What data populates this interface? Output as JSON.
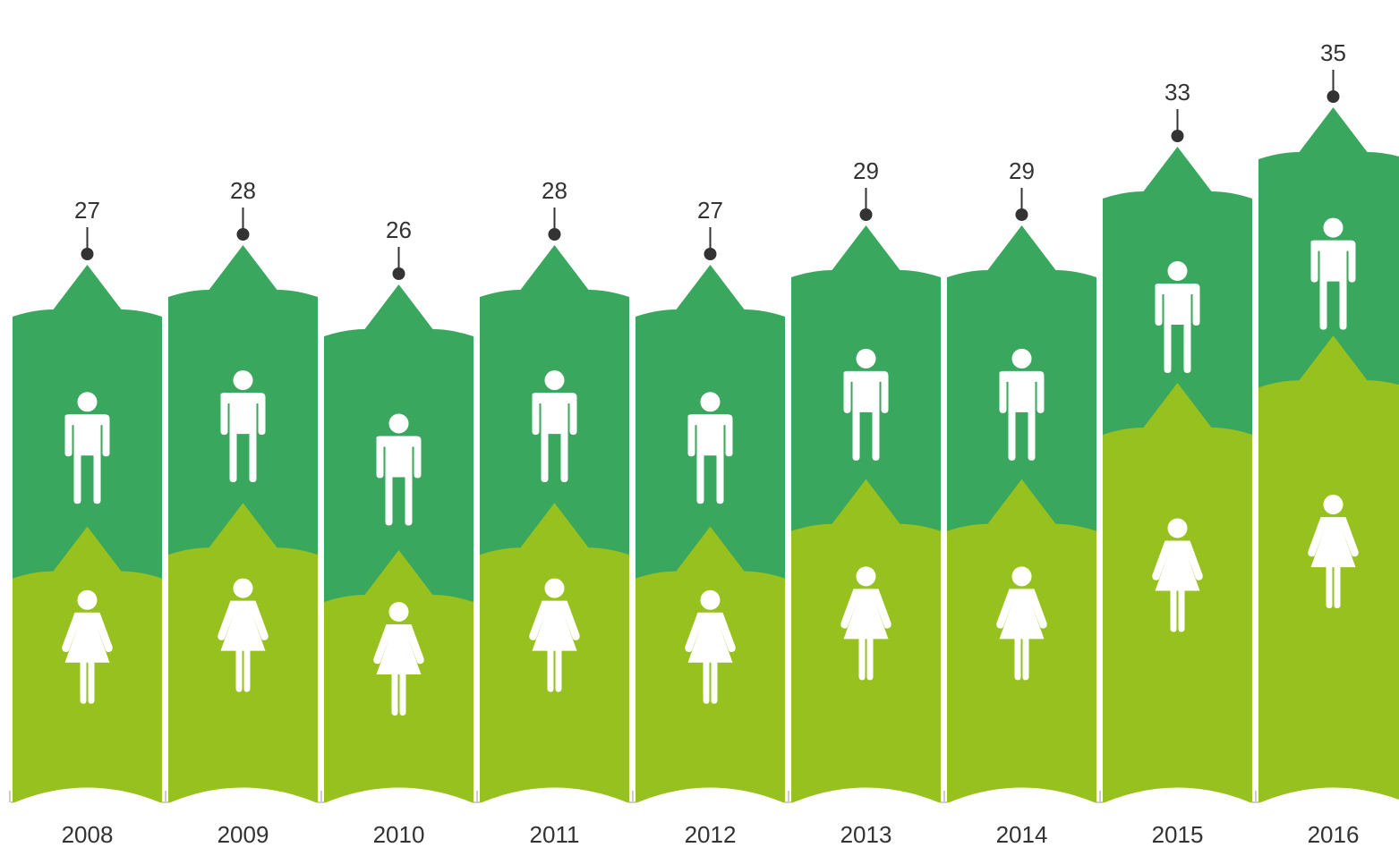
{
  "chart_data": {
    "type": "stacked-column",
    "categories": [
      "2008",
      "2009",
      "2010",
      "2011",
      "2012",
      "2013",
      "2014",
      "2015",
      "2016"
    ],
    "totals": [
      27,
      28,
      26,
      28,
      27,
      29,
      29,
      33,
      35
    ],
    "series": [
      {
        "color": "#96c11f",
        "values": [
          13.7,
          14.9,
          12.5,
          14.9,
          13.7,
          16.1,
          16.1,
          21,
          23.4
        ]
      },
      {
        "color": "#3aa75e",
        "values": [
          13.3,
          13.1,
          13.5,
          13.1,
          13.3,
          12.9,
          12.9,
          12,
          11.6
        ]
      }
    ]
  }
}
